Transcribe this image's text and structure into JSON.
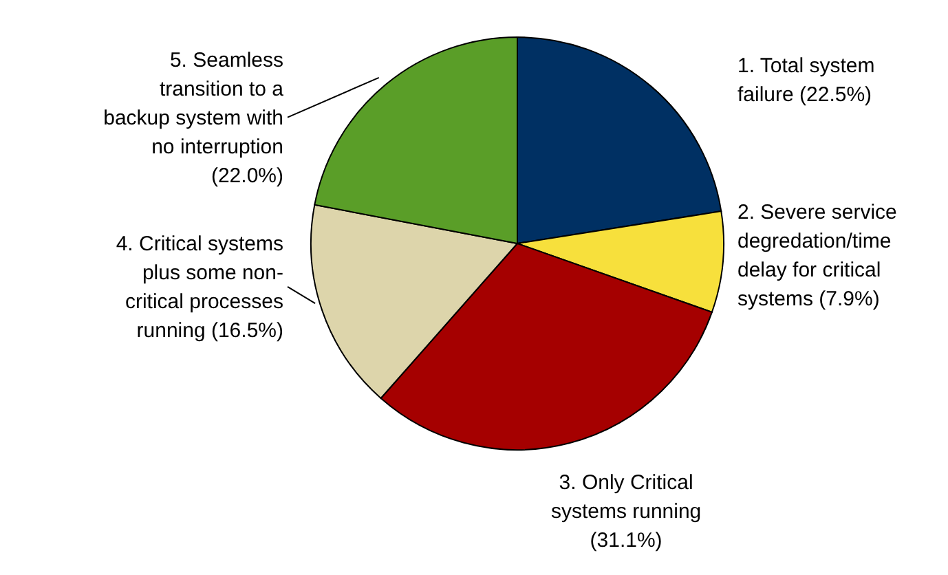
{
  "chart_data": {
    "type": "pie",
    "categories": [
      "1. Total system failure",
      "2. Severe service degredation/time delay for critical systems",
      "3. Only Critical systems running",
      "4. Critical systems plus some non-critical processes running",
      "5. Seamless transition to a backup system with no interruption"
    ],
    "values": [
      22.5,
      7.9,
      31.1,
      16.5,
      22.0
    ],
    "value_labels": [
      "(22.5%)",
      "(7.9%)",
      "(31.1%)",
      "(16.5%)",
      "(22.0%)"
    ],
    "colors": [
      "#003063",
      "#f7e03c",
      "#a50000",
      "#ddd5ab",
      "#5a9e28"
    ],
    "legend": false
  }
}
